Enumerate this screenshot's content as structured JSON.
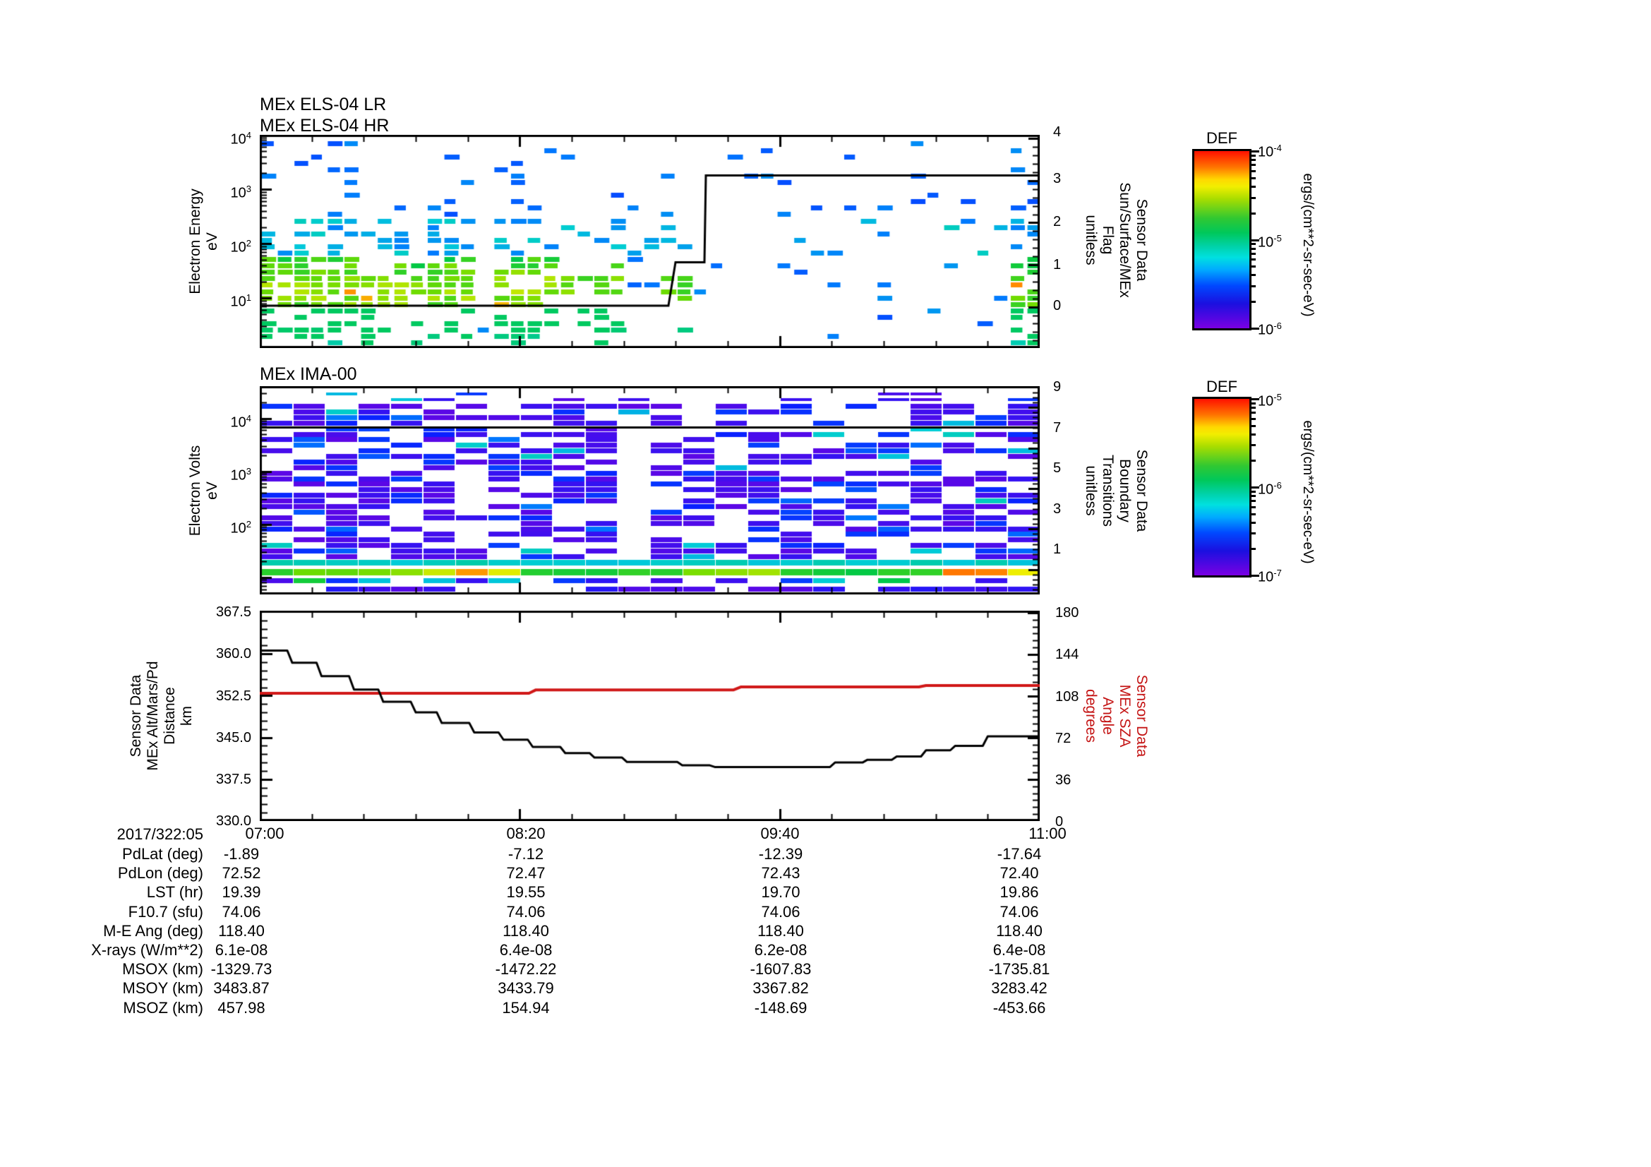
{
  "panels": {
    "els": {
      "titles": [
        "MEx ELS-04 LR",
        "MEx ELS-04 HR"
      ],
      "ylabel": [
        "Electron Energy",
        "eV"
      ],
      "right_label": [
        "Sensor Data",
        "Sun/Surface/MEx",
        "Flag",
        "unitless"
      ],
      "yticks": [
        {
          "b": "10",
          "s": "4"
        },
        {
          "b": "10",
          "s": "3"
        },
        {
          "b": "10",
          "s": "2"
        },
        {
          "b": "10",
          "s": "1"
        }
      ],
      "rticks": [
        "4",
        "3",
        "2",
        "1",
        "0"
      ]
    },
    "ima": {
      "titles": [
        "MEx IMA-00"
      ],
      "ylabel": [
        "Electron Volts",
        "eV"
      ],
      "right_label": [
        "Sensor Data",
        "Boundary",
        "Transitions",
        "unitless"
      ],
      "yticks": [
        {
          "b": "10",
          "s": "4"
        },
        {
          "b": "10",
          "s": "3"
        },
        {
          "b": "10",
          "s": "2"
        }
      ],
      "rticks": [
        "9",
        "7",
        "5",
        "3",
        "1"
      ]
    },
    "ts": {
      "ylabel": [
        "Sensor Data",
        "MEx Alt/Mars/Pd",
        "Distance",
        "km"
      ],
      "right_label": [
        "Sensor Data",
        "MEx SZA",
        "Angle",
        "degrees"
      ],
      "yticks": [
        "367.5",
        "360.0",
        "352.5",
        "345.0",
        "337.5",
        "330.0"
      ],
      "rticks": [
        "180",
        "144",
        "108",
        "72",
        "36",
        "0"
      ]
    }
  },
  "xaxis": {
    "date_label": "2017/322:05",
    "labels": [
      "07:00",
      "08:20",
      "09:40",
      "11:00"
    ]
  },
  "colorbars": [
    {
      "title": "DEF",
      "ticks": [
        {
          "b": "10",
          "s": "-4"
        },
        {
          "b": "10",
          "s": "-5"
        },
        {
          "b": "10",
          "s": "-6"
        }
      ],
      "unit": "ergs/(cm**2-sr-sec-eV)"
    },
    {
      "title": "DEF",
      "ticks": [
        {
          "b": "10",
          "s": "-5"
        },
        {
          "b": "10",
          "s": "-6"
        },
        {
          "b": "10",
          "s": "-7"
        }
      ],
      "unit": "ergs/(cm**2-sr-sec-eV)"
    }
  ],
  "table": {
    "rows": [
      {
        "label": "PdLat (deg)",
        "values": [
          "-1.89",
          "-7.12",
          "-12.39",
          "-17.64"
        ]
      },
      {
        "label": "PdLon (deg)",
        "values": [
          "72.52",
          "72.47",
          "72.43",
          "72.40"
        ]
      },
      {
        "label": "LST (hr)",
        "values": [
          "19.39",
          "19.55",
          "19.70",
          "19.86"
        ]
      },
      {
        "label": "F10.7 (sfu)",
        "values": [
          "74.06",
          "74.06",
          "74.06",
          "74.06"
        ]
      },
      {
        "label": "M-E Ang (deg)",
        "values": [
          "118.40",
          "118.40",
          "118.40",
          "118.40"
        ]
      },
      {
        "label": "X-rays (W/m**2)",
        "values": [
          "6.1e-08",
          "6.4e-08",
          "6.2e-08",
          "6.4e-08"
        ]
      },
      {
        "label": "MSOX (km)",
        "values": [
          "-1329.73",
          "-1472.22",
          "-1607.83",
          "-1735.81"
        ]
      },
      {
        "label": "MSOY (km)",
        "values": [
          "3483.87",
          "3433.79",
          "3367.82",
          "3283.42"
        ]
      },
      {
        "label": "MSOZ (km)",
        "values": [
          "457.98",
          "154.94",
          "-148.69",
          "-453.66"
        ]
      }
    ]
  },
  "colors": {
    "accent_red": "#c41414",
    "line_black": "#000000",
    "sza_line": "#d01818"
  },
  "chart_data": [
    {
      "type": "heatmap",
      "title": "MEx ELS-04 LR / MEx ELS-04 HR",
      "x_axis": {
        "ticks": [
          "07:00",
          "08:20",
          "09:40",
          "11:00"
        ],
        "range_minutes": [
          0,
          240
        ],
        "minor_tick_minutes": 16,
        "date": "2017/322:05"
      },
      "y_axis": {
        "label": "Electron Energy eV",
        "scale": "log",
        "range": [
          1.2,
          10000
        ]
      },
      "color_axis": {
        "label": "DEF ergs/(cm**2-sr-sec-eV)",
        "range": [
          1e-06,
          0.0001
        ],
        "colormap": "rainbow"
      },
      "overlay": {
        "name": "Sensor Data Sun/Surface/MEx Flag unitless",
        "axis_range": [
          0,
          4
        ],
        "steps_min_value": [
          [
            0,
            0
          ],
          [
            126,
            0
          ],
          [
            128,
            1
          ],
          [
            137,
            1
          ],
          [
            137.5,
            3
          ],
          [
            240,
            3
          ]
        ]
      },
      "density_segments": [
        [
          0,
          0.075,
          0.88,
          0.42,
          0.1,
          1
        ],
        [
          0.075,
          0.095,
          0.15,
          0.06,
          0.04,
          0.6
        ],
        [
          0.095,
          0.195,
          0.85,
          0.4,
          0.1,
          1
        ],
        [
          0.195,
          0.215,
          0.25,
          0.1,
          0.05,
          0.8
        ],
        [
          0.215,
          0.27,
          0.85,
          0.4,
          0.12,
          1
        ],
        [
          0.27,
          0.302,
          0.05,
          0.04,
          0.03,
          0
        ],
        [
          0.302,
          0.385,
          0.82,
          0.4,
          0.1,
          1
        ],
        [
          0.385,
          0.46,
          0.5,
          0.25,
          0.08,
          0.85
        ],
        [
          0.46,
          0.505,
          0.15,
          0.1,
          0.05,
          0.4
        ],
        [
          0.505,
          0.56,
          0.38,
          0.2,
          0.08,
          0.7
        ],
        [
          0.56,
          0.96,
          0.07,
          0.07,
          0.05,
          0.2
        ],
        [
          0.96,
          1,
          0.8,
          0.45,
          0.15,
          0.85
        ]
      ]
    },
    {
      "type": "heatmap",
      "title": "MEx IMA-00",
      "x_axis": {
        "ticks": [
          "07:00",
          "08:20",
          "09:40",
          "11:00"
        ],
        "range_minutes": [
          0,
          240
        ],
        "minor_tick_minutes": 16
      },
      "y_axis": {
        "label": "Electron Volts eV",
        "scale": "log",
        "range": [
          4.8,
          40000
        ]
      },
      "color_axis": {
        "label": "DEF ergs/(cm**2-sr-sec-eV)",
        "range": [
          1e-07,
          1e-05
        ],
        "colormap": "rainbow"
      },
      "overlay": {
        "name": "Sensor Data Boundary Transitions unitless",
        "axis_range": [
          1,
          9
        ],
        "steps_min_value": [
          [
            0,
            7
          ],
          [
            240,
            7
          ]
        ]
      },
      "fill_probability": 0.55,
      "bright_band": {
        "energy_ev": [
          10,
          22
        ],
        "description": "cyan-green-yellow continuous band",
        "hot_patches_frac": [
          [
            0.04,
            0.19,
            0.1
          ],
          [
            0.22,
            0.34,
            0.2
          ],
          [
            0.54,
            0.65,
            0.13
          ],
          [
            0.86,
            1.0,
            0.24
          ]
        ]
      }
    },
    {
      "type": "line",
      "x_axis": {
        "ticks": [
          "07:00",
          "08:20",
          "09:40",
          "11:00"
        ],
        "range_minutes": [
          0,
          240
        ],
        "minor_tick_minutes": 16
      },
      "left_axis": {
        "label": "Sensor Data MEx Alt/Mars/Pd Distance km",
        "range": [
          330,
          367.5
        ],
        "ticks": [
          330,
          337.5,
          345,
          352.5,
          360,
          367.5
        ]
      },
      "right_axis": {
        "label": "Sensor Data MEx SZA Angle degrees",
        "range": [
          0,
          180
        ],
        "ticks": [
          0,
          36,
          72,
          108,
          144,
          180
        ]
      },
      "series": [
        {
          "name": "MEx Alt/Mars/Pd Distance",
          "axis": "left",
          "color": "#000000",
          "style": "steps",
          "steps_min_value": [
            [
              0,
              360.6
            ],
            [
              10,
              358.4
            ],
            [
              19,
              356.0
            ],
            [
              29,
              353.6
            ],
            [
              38,
              351.4
            ],
            [
              48,
              349.5
            ],
            [
              56,
              347.6
            ],
            [
              66,
              345.9
            ],
            [
              75,
              344.6
            ],
            [
              84,
              343.3
            ],
            [
              94,
              342.2
            ],
            [
              103,
              341.4
            ],
            [
              113,
              340.6
            ],
            [
              130,
              340.0
            ],
            [
              140,
              339.7
            ],
            [
              177,
              340.5
            ],
            [
              187,
              341.0
            ],
            [
              196,
              341.6
            ],
            [
              205,
              342.7
            ],
            [
              214,
              343.5
            ],
            [
              224,
              345.2
            ],
            [
              240,
              345.2
            ]
          ]
        },
        {
          "name": "MEx SZA Angle",
          "axis": "right",
          "color": "#d01818",
          "style": "steps",
          "steps_min_value": [
            [
              0,
              110.4
            ],
            [
              85,
              113.4
            ],
            [
              148,
              115.9
            ],
            [
              205,
              117.1
            ],
            [
              240,
              117.2
            ]
          ]
        }
      ]
    }
  ]
}
